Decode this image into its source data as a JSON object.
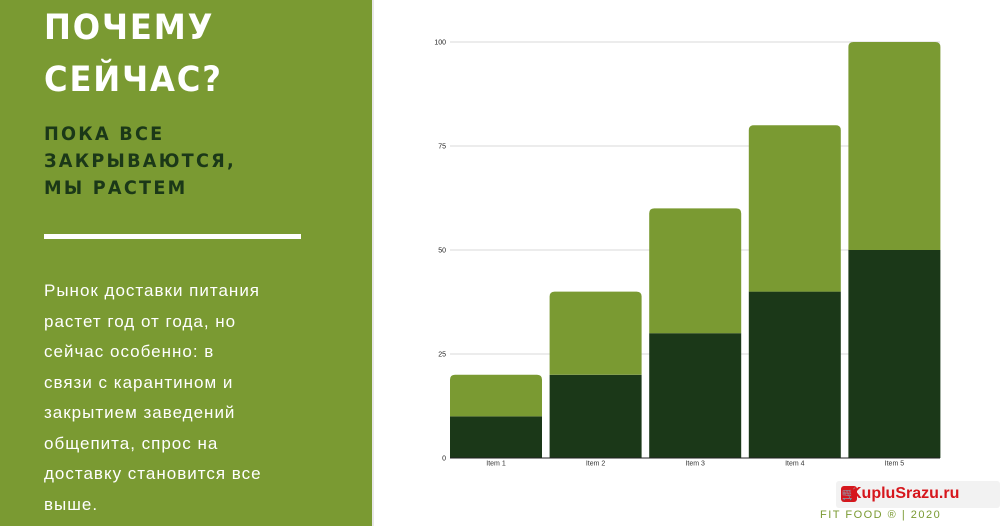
{
  "slide": {
    "headline": "ПОЧЕМУ\nСЕЙЧАС?",
    "subheadline": "ПОКА ВСЕ\nЗАКРЫВАЮТСЯ,\nМЫ РАСТЕМ",
    "body": "Рынок доставки питания\nрастет год от года, но\nсейчас особенно: в\nсвязи с карантином и\nзакрытием заведений\nобщепита, спрос на\nдоставку становится все\nвыше.",
    "footer": "FIT FOOD ® | 2020"
  },
  "watermark": {
    "text": "KupluSrazu.ru",
    "icon": "cart-icon"
  },
  "colors": {
    "panel": "#7a9a32",
    "headline": "#ffffff",
    "subheadline": "#1b3818",
    "bar_dark": "#1b3818",
    "bar_light": "#7a9a32",
    "grid": "#d9d9d9"
  },
  "chart_data": {
    "type": "bar",
    "stacked": true,
    "categories": [
      "Item 1",
      "Item 2",
      "Item 3",
      "Item 4",
      "Item 5"
    ],
    "series": [
      {
        "values": [
          10,
          20,
          30,
          40,
          50
        ],
        "color": "#1b3818"
      },
      {
        "values": [
          10,
          20,
          30,
          40,
          50
        ],
        "color": "#7a9a32"
      }
    ],
    "ylim": [
      0,
      100
    ],
    "yticks": [
      0,
      25,
      50,
      75,
      100
    ],
    "grid": true,
    "legend": "none"
  }
}
